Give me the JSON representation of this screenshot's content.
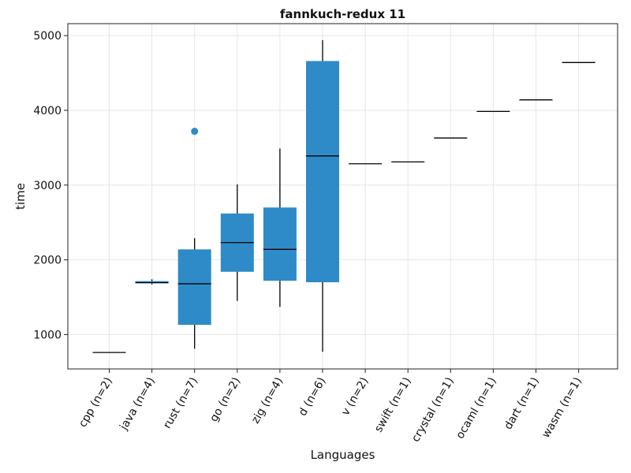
{
  "chart_data": {
    "type": "box",
    "title": "fannkuch-redux 11",
    "xlabel": "Languages",
    "ylabel": "time",
    "ylim": [
      540,
      5160
    ],
    "yticks": [
      1000,
      2000,
      3000,
      4000,
      5000
    ],
    "grid": true,
    "colors": {
      "box": "#2e8bc7",
      "line": "#000000"
    },
    "categories": [
      "cpp (n=2)",
      "java (n=4)",
      "rust (n=7)",
      "go (n=2)",
      "zig (n=4)",
      "d (n=6)",
      "v (n=2)",
      "swift (n=1)",
      "crystal (n=1)",
      "ocaml (n=1)",
      "dart (n=1)",
      "wasm (n=1)"
    ],
    "boxes": [
      {
        "min": 760,
        "q1": 760,
        "median": 760,
        "q3": 760,
        "max": 760,
        "outliers": []
      },
      {
        "min": 1670,
        "q1": 1685,
        "median": 1695,
        "q3": 1715,
        "max": 1740,
        "outliers": []
      },
      {
        "min": 810,
        "q1": 1130,
        "median": 1680,
        "q3": 2140,
        "max": 2290,
        "outliers": [
          3720
        ]
      },
      {
        "min": 1450,
        "q1": 1840,
        "median": 2230,
        "q3": 2620,
        "max": 3010,
        "outliers": []
      },
      {
        "min": 1370,
        "q1": 1720,
        "median": 2140,
        "q3": 2700,
        "max": 3490,
        "outliers": []
      },
      {
        "min": 770,
        "q1": 1700,
        "median": 3390,
        "q3": 4660,
        "max": 4940,
        "outliers": []
      },
      {
        "min": 3285,
        "q1": 3285,
        "median": 3285,
        "q3": 3285,
        "max": 3285,
        "outliers": []
      },
      {
        "min": 3310,
        "q1": 3310,
        "median": 3310,
        "q3": 3310,
        "max": 3310,
        "outliers": []
      },
      {
        "min": 3630,
        "q1": 3630,
        "median": 3630,
        "q3": 3630,
        "max": 3630,
        "outliers": []
      },
      {
        "min": 3985,
        "q1": 3985,
        "median": 3985,
        "q3": 3985,
        "max": 3985,
        "outliers": []
      },
      {
        "min": 4140,
        "q1": 4140,
        "median": 4140,
        "q3": 4140,
        "max": 4140,
        "outliers": []
      },
      {
        "min": 4640,
        "q1": 4640,
        "median": 4640,
        "q3": 4640,
        "max": 4640,
        "outliers": []
      }
    ]
  }
}
